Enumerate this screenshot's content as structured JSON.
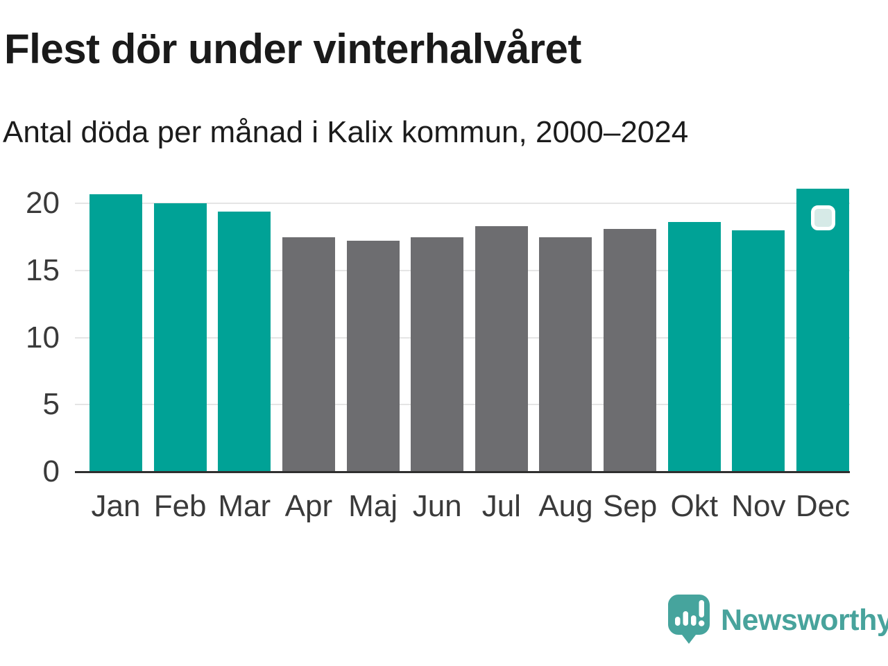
{
  "chart_data": {
    "type": "bar",
    "title": "Flest dör under vinterhalvåret",
    "subtitle": "Antal döda per månad i Kalix kommun, 2000–2024",
    "categories": [
      "Jan",
      "Feb",
      "Mar",
      "Apr",
      "Maj",
      "Jun",
      "Jul",
      "Aug",
      "Sep",
      "Okt",
      "Nov",
      "Dec"
    ],
    "values": [
      20.7,
      20.0,
      19.4,
      17.5,
      17.2,
      17.5,
      18.3,
      17.5,
      18.1,
      18.6,
      18.0,
      21.1
    ],
    "winter_months": [
      true,
      true,
      true,
      false,
      false,
      false,
      false,
      false,
      false,
      true,
      true,
      true
    ],
    "yticks": [
      0,
      5,
      10,
      15,
      20
    ],
    "ylim": [
      0,
      21.5
    ],
    "xlabel": "",
    "ylabel": "",
    "grid": true,
    "legend": false,
    "highlight": {
      "category": "Dec",
      "marker": "rounded-square"
    },
    "colors": {
      "winter_bar": "#00A296",
      "summer_bar": "#6D6D70",
      "gridline": "#E5E5E5",
      "axis_line": "#2F2F2F",
      "highlight_marker_fill": "#D6EAE7",
      "highlight_marker_border": "#FFFFFF"
    }
  },
  "footer": {
    "brand": "Newsworthy",
    "brand_color": "#48A39C"
  }
}
